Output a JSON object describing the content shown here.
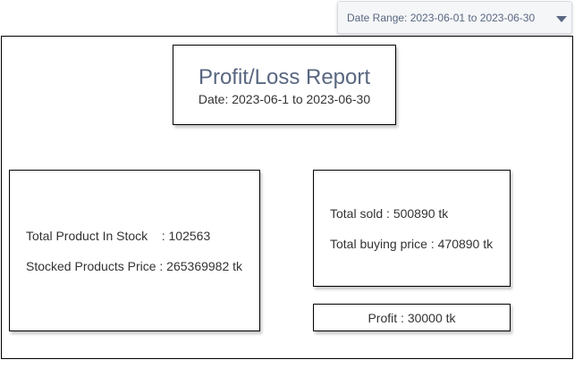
{
  "date_range": {
    "label": "Date Range: 2023-06-01 to 2023-06-30",
    "icon": "chevron-down-icon"
  },
  "report": {
    "title": "Profit/Loss Report",
    "date": "Date: 2023-06-1 to 2023-06-30"
  },
  "stock": {
    "total_product_label": "Total Product In Stock    : 102563",
    "stocked_price_label": "Stocked Products Price : 265369982 tk"
  },
  "sales": {
    "total_sold_label": "Total sold : 500890 tk",
    "total_buying_label": "Total buying price : 470890 tk"
  },
  "profit": {
    "label": "Profit : 30000 tk"
  },
  "colors": {
    "title": "#596780",
    "dropdown_bg": "#f5f6f8",
    "text": "#333333"
  }
}
